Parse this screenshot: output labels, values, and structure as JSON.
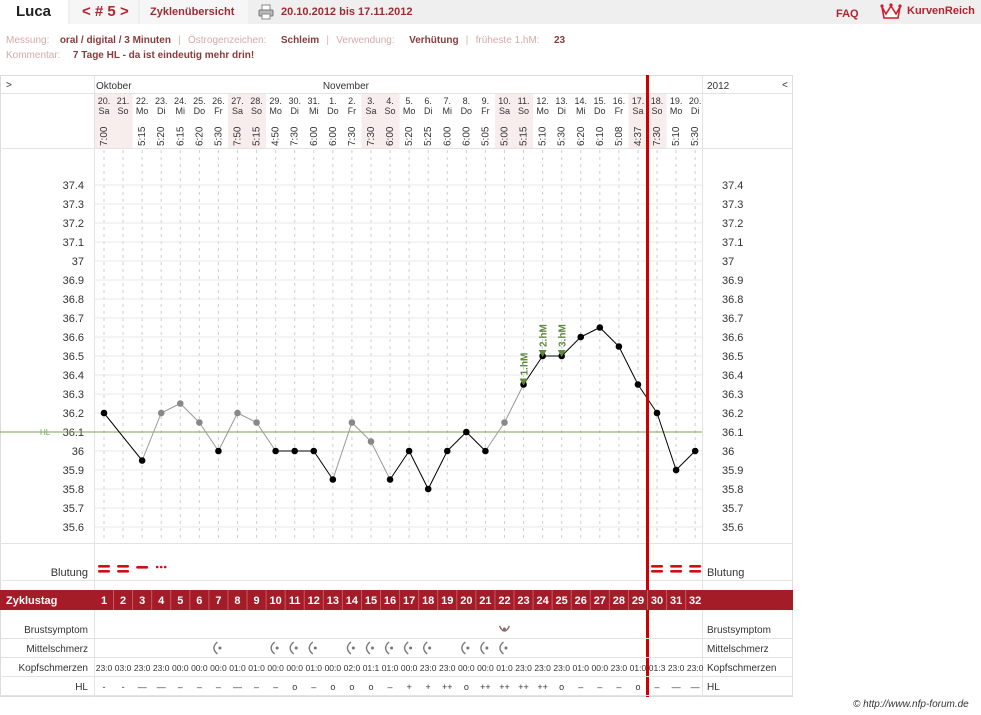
{
  "header": {
    "user": "Luca",
    "cycle": "< # 5 >",
    "overview_tab": "Zyklenübersicht",
    "date_range": "20.10.2012 bis 17.11.2012",
    "faq": "FAQ",
    "brand": "KurvenReich"
  },
  "info": {
    "messung_label": "Messung:",
    "messung_value": "oral / digital / 3 Minuten",
    "oestrogen_label": "Östrogenzeichen:",
    "oestrogen_value": "Schleim",
    "verwendung_label": "Verwendung:",
    "verwendung_value": "Verhütung",
    "fruehest_label": "früheste 1.hM:",
    "fruehest_value": "23",
    "kommentar_label": "Kommentar:",
    "kommentar_value": "7 Tage HL - da ist eindeutig mehr drin!"
  },
  "nav": {
    "left": ">",
    "right": "<",
    "year": "2012"
  },
  "months": [
    "Oktober",
    "November"
  ],
  "hl_label": "HL",
  "rows": {
    "blutung": "Blutung",
    "zyklustag": "Zyklustag",
    "brust": "Brustsymptom",
    "mittel": "Mittelschmerz",
    "kopf": "Kopfschmerzen",
    "hl": "HL"
  },
  "footer": "© http://www.nfp-forum.de",
  "days": [
    {
      "date": "20.",
      "wd": "Sa",
      "time": "7:00"
    },
    {
      "date": "21.",
      "wd": "So",
      "time": ""
    },
    {
      "date": "22.",
      "wd": "Mo",
      "time": "5:15"
    },
    {
      "date": "23.",
      "wd": "Di",
      "time": "5:20"
    },
    {
      "date": "24.",
      "wd": "Mi",
      "time": "6:15"
    },
    {
      "date": "25.",
      "wd": "Do",
      "time": "6:20"
    },
    {
      "date": "26.",
      "wd": "Fr",
      "time": "5:30"
    },
    {
      "date": "27.",
      "wd": "Sa",
      "time": "7:50"
    },
    {
      "date": "28.",
      "wd": "So",
      "time": "5:15"
    },
    {
      "date": "29.",
      "wd": "Mo",
      "time": "4:50"
    },
    {
      "date": "30.",
      "wd": "Di",
      "time": "7:30"
    },
    {
      "date": "31.",
      "wd": "Mi",
      "time": "6:00"
    },
    {
      "date": "1.",
      "wd": "Do",
      "time": "6:00"
    },
    {
      "date": "2.",
      "wd": "Fr",
      "time": "7:30"
    },
    {
      "date": "3.",
      "wd": "Sa",
      "time": "7:30"
    },
    {
      "date": "4.",
      "wd": "So",
      "time": "6:00"
    },
    {
      "date": "5.",
      "wd": "Mo",
      "time": "5:20"
    },
    {
      "date": "6.",
      "wd": "Di",
      "time": "5:25"
    },
    {
      "date": "7.",
      "wd": "Mi",
      "time": "6:00"
    },
    {
      "date": "8.",
      "wd": "Do",
      "time": "6:00"
    },
    {
      "date": "9.",
      "wd": "Fr",
      "time": "5:05"
    },
    {
      "date": "10.",
      "wd": "Sa",
      "time": "5:00"
    },
    {
      "date": "11.",
      "wd": "So",
      "time": "5:15"
    },
    {
      "date": "12.",
      "wd": "Mo",
      "time": "5:10"
    },
    {
      "date": "13.",
      "wd": "Di",
      "time": "5:30"
    },
    {
      "date": "14.",
      "wd": "Mi",
      "time": "6:20"
    },
    {
      "date": "15.",
      "wd": "Do",
      "time": "6:10"
    },
    {
      "date": "16.",
      "wd": "Fr",
      "time": "5:08"
    },
    {
      "date": "17.",
      "wd": "Sa",
      "time": "4:37"
    },
    {
      "date": "18.",
      "wd": "So",
      "time": "7:30"
    },
    {
      "date": "19.",
      "wd": "Mo",
      "time": "5:10"
    },
    {
      "date": "20.",
      "wd": "Di",
      "time": "5:30"
    }
  ],
  "chart_data": {
    "type": "line",
    "x": [
      1,
      2,
      3,
      4,
      5,
      6,
      7,
      8,
      9,
      10,
      11,
      12,
      13,
      14,
      15,
      16,
      17,
      18,
      19,
      20,
      21,
      22,
      23,
      24,
      25,
      26,
      27,
      28,
      29,
      30,
      31,
      32
    ],
    "series": [
      {
        "values": [
          36.2,
          null,
          35.95,
          36.2,
          36.25,
          36.15,
          36.0,
          36.2,
          36.15,
          36.0,
          36.0,
          36.0,
          35.85,
          36.15,
          36.05,
          35.85,
          36.0,
          35.8,
          36.0,
          36.1,
          36.0,
          36.15,
          36.35,
          36.5,
          36.5,
          36.6,
          36.65,
          36.55,
          36.35,
          36.2,
          35.9,
          36.0
        ]
      }
    ],
    "excluded_days": [
      4,
      5,
      6,
      8,
      9,
      14,
      15,
      22
    ],
    "yticks": [
      "37.4",
      "37.3",
      "37.2",
      "37.1",
      "37",
      "36.9",
      "36.8",
      "36.7",
      "36.6",
      "36.5",
      "36.4",
      "36.3",
      "36.2",
      "36.1",
      "36",
      "35.9",
      "35.8",
      "35.7",
      "35.6"
    ],
    "ylim": [
      35.6,
      37.4
    ],
    "coverline": 36.1,
    "markers": [
      {
        "day": 23,
        "label": "1.hM",
        "value": 36.35
      },
      {
        "day": 24,
        "label": "2.hM",
        "value": 36.5
      },
      {
        "day": 25,
        "label": "3.hM",
        "value": 36.5
      }
    ],
    "cycle_end_after_day": 29,
    "colors": {
      "measured": "#000000",
      "excluded": "#888888",
      "coverline": "#7aa05a",
      "marker": "#5d8a3c",
      "cycle_end": "#cc0000",
      "bar": "#a31c27",
      "bleed": "#cc1111"
    }
  },
  "blutung_days": [
    {
      "day": 1,
      "type": "double"
    },
    {
      "day": 2,
      "type": "double"
    },
    {
      "day": 3,
      "type": "single"
    },
    {
      "day": 4,
      "type": "dots"
    },
    {
      "day": 30,
      "type": "double"
    },
    {
      "day": 31,
      "type": "double"
    },
    {
      "day": 32,
      "type": "double"
    }
  ],
  "brust_days": [
    22
  ],
  "mittel_days": [
    7,
    10,
    11,
    12,
    14,
    15,
    16,
    17,
    18,
    20,
    21,
    22
  ],
  "kopf": [
    "23:0",
    "03:0",
    "23:0",
    "23:0",
    "00:0",
    "00:0",
    "00:0",
    "01:0",
    "01:0",
    "00:0",
    "00:0",
    "01:0",
    "00:0",
    "02:0",
    "01:1",
    "01:0",
    "00:0",
    "23:0",
    "23:0",
    "00:0",
    "00:0",
    "01:0",
    "23:0",
    "23:0",
    "23:0",
    "01:0",
    "00:0",
    "23:0",
    "01:0",
    "01:3",
    "23:0",
    "23:0"
  ],
  "hl_values": [
    "-",
    "-",
    "—",
    "—",
    "–",
    "–",
    "–",
    "—",
    "–",
    "–",
    "o",
    "–",
    "o",
    "o",
    "o",
    "–",
    "+",
    "+",
    "++",
    "o",
    "++",
    "++",
    "++",
    "++",
    "o",
    "–",
    "–",
    "–",
    "o",
    "–",
    "—",
    "—"
  ]
}
